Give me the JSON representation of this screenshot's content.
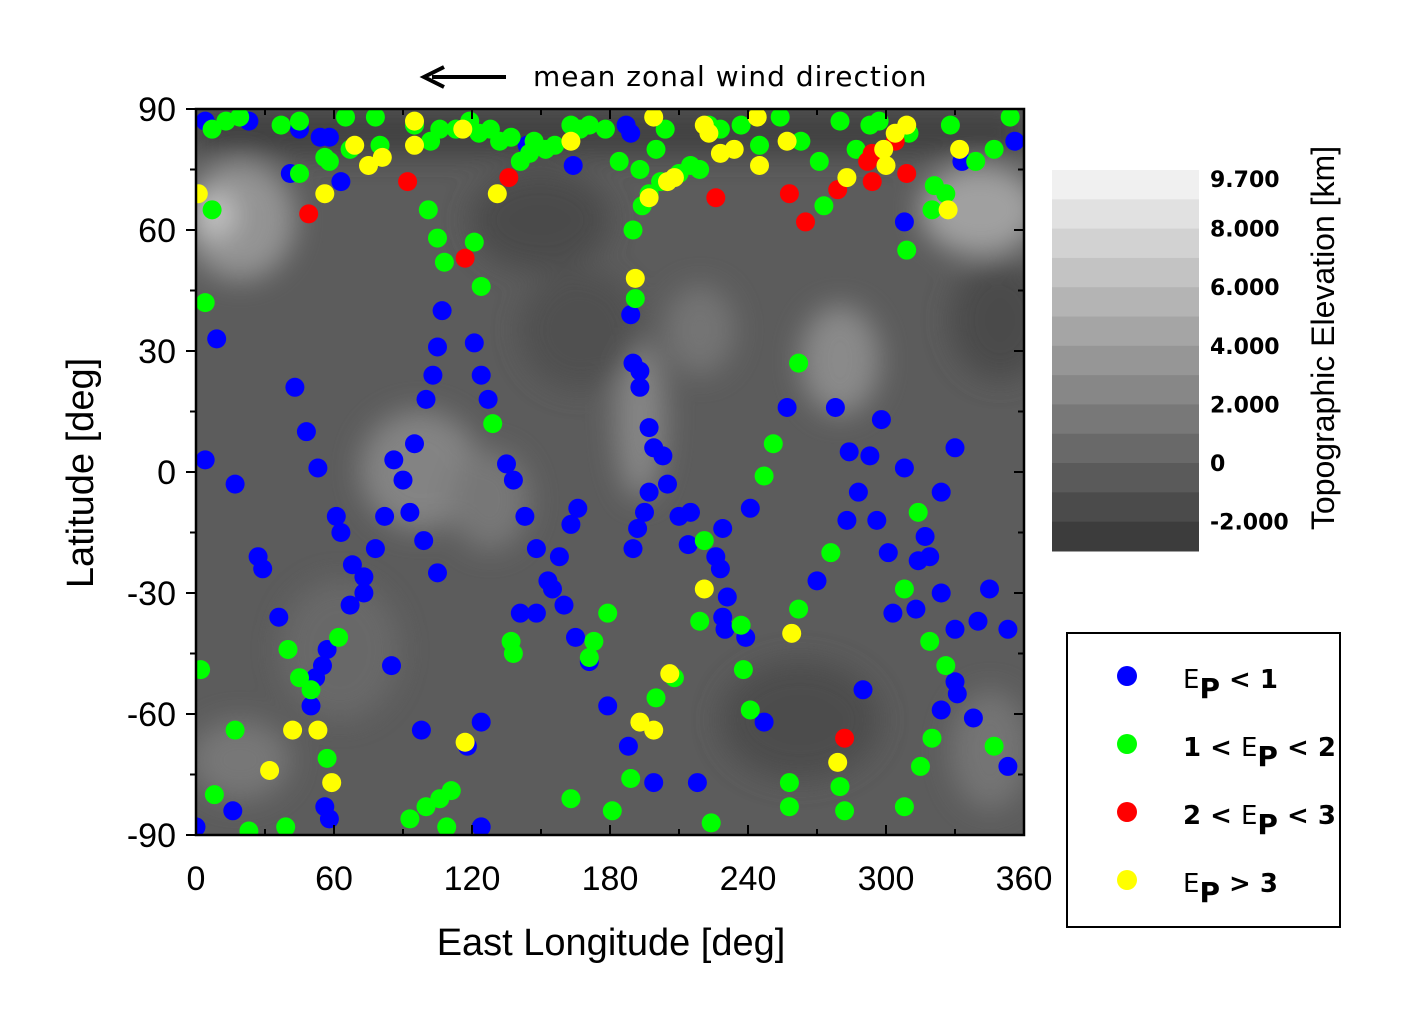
{
  "annotation": {
    "text": "mean zonal wind direction",
    "arrow_icon": "arrow-left"
  },
  "colorbar": {
    "title": "Topographic Elevation [km]",
    "ticks": [
      {
        "value": 9.7,
        "label": "9.700"
      },
      {
        "value": 8,
        "label": "8.000"
      },
      {
        "value": 6,
        "label": "6.000"
      },
      {
        "value": 4,
        "label": "4.000"
      },
      {
        "value": 2,
        "label": "2.000"
      },
      {
        "value": 0,
        "label": "0"
      },
      {
        "value": -2,
        "label": "-2.000"
      }
    ],
    "range": [
      -3,
      10
    ]
  },
  "legend": {
    "placement": "right-bottom",
    "entries": [
      {
        "prefix": "",
        "symbol": "E",
        "sub": "P",
        "suffix": "< 1",
        "color": "#0000ff"
      },
      {
        "prefix": "1 <",
        "symbol": "E",
        "sub": "P",
        "suffix": "< 2",
        "color": "#00ff00"
      },
      {
        "prefix": "2 <",
        "symbol": "E",
        "sub": "P",
        "suffix": "< 3",
        "color": "#ff0000"
      },
      {
        "prefix": "",
        "symbol": "E",
        "sub": "P",
        "suffix": "> 3",
        "color": "#ffff00"
      }
    ]
  },
  "chart_data": {
    "type": "scatter",
    "title": "",
    "xlabel": "East Longitude [deg]",
    "ylabel": "Latitude [deg]",
    "xlim": [
      0,
      360
    ],
    "ylim": [
      -90,
      90
    ],
    "xticks": [
      {
        "v": 0,
        "label": "0"
      },
      {
        "v": 60,
        "label": "60"
      },
      {
        "v": 120,
        "label": "120"
      },
      {
        "v": 180,
        "label": "180"
      },
      {
        "v": 240,
        "label": "240"
      },
      {
        "v": 300,
        "label": "300"
      },
      {
        "v": 360,
        "label": "360"
      }
    ],
    "yticks": [
      {
        "v": 90,
        "label": "90"
      },
      {
        "v": 60,
        "label": "60"
      },
      {
        "v": 30,
        "label": "30"
      },
      {
        "v": 0,
        "label": "0"
      },
      {
        "v": -30,
        "label": "-30"
      },
      {
        "v": -60,
        "label": "-60"
      },
      {
        "v": -90,
        "label": "-90"
      }
    ],
    "grid": false,
    "series": [
      {
        "name": "Ep < 1",
        "color": "#0000ff",
        "points": [
          [
            4,
            87
          ],
          [
            23,
            87
          ],
          [
            45,
            85
          ],
          [
            54,
            83
          ],
          [
            58,
            83
          ],
          [
            41,
            74
          ],
          [
            63,
            72
          ],
          [
            144,
            81
          ],
          [
            164,
            76
          ],
          [
            187,
            86
          ],
          [
            189,
            84
          ],
          [
            308,
            62
          ],
          [
            333,
            77
          ],
          [
            356,
            82
          ],
          [
            9,
            33
          ],
          [
            43,
            21
          ],
          [
            48,
            10
          ],
          [
            53,
            1
          ],
          [
            4,
            3
          ],
          [
            17,
            -3
          ],
          [
            107,
            40
          ],
          [
            105,
            31
          ],
          [
            103,
            24
          ],
          [
            100,
            18
          ],
          [
            121,
            32
          ],
          [
            124,
            24
          ],
          [
            127,
            18
          ],
          [
            95,
            7
          ],
          [
            86,
            3
          ],
          [
            90,
            -2
          ],
          [
            82,
            -11
          ],
          [
            93,
            -10
          ],
          [
            99,
            -17
          ],
          [
            105,
            -25
          ],
          [
            61,
            -11
          ],
          [
            63,
            -15
          ],
          [
            78,
            -19
          ],
          [
            68,
            -23
          ],
          [
            73,
            -26
          ],
          [
            73,
            -30
          ],
          [
            67,
            -33
          ],
          [
            27,
            -21
          ],
          [
            29,
            -24
          ],
          [
            36,
            -36
          ],
          [
            57,
            -44
          ],
          [
            55,
            -48
          ],
          [
            52,
            -51
          ],
          [
            50,
            -58
          ],
          [
            85,
            -48
          ],
          [
            98,
            -64
          ],
          [
            118,
            -68
          ],
          [
            124,
            -62
          ],
          [
            124,
            -88
          ],
          [
            16,
            -84
          ],
          [
            0,
            -88
          ],
          [
            56,
            -83
          ],
          [
            58,
            -86
          ],
          [
            135,
            2
          ],
          [
            138,
            -2
          ],
          [
            143,
            -11
          ],
          [
            148,
            -19
          ],
          [
            158,
            -21
          ],
          [
            153,
            -27
          ],
          [
            155,
            -29
          ],
          [
            141,
            -35
          ],
          [
            148,
            -35
          ],
          [
            160,
            -33
          ],
          [
            165,
            -41
          ],
          [
            171,
            -47
          ],
          [
            179,
            -58
          ],
          [
            189,
            39
          ],
          [
            190,
            27
          ],
          [
            193,
            25
          ],
          [
            193,
            21
          ],
          [
            197,
            11
          ],
          [
            199,
            6
          ],
          [
            203,
            4
          ],
          [
            205,
            -3
          ],
          [
            197,
            -5
          ],
          [
            195,
            -10
          ],
          [
            192,
            -14
          ],
          [
            190,
            -19
          ],
          [
            166,
            -9
          ],
          [
            163,
            -13
          ],
          [
            210,
            -11
          ],
          [
            215,
            -10
          ],
          [
            214,
            -18
          ],
          [
            226,
            -21
          ],
          [
            229,
            -14
          ],
          [
            228,
            -24
          ],
          [
            231,
            -31
          ],
          [
            229,
            -36
          ],
          [
            230,
            -39
          ],
          [
            239,
            -41
          ],
          [
            241,
            -9
          ],
          [
            247,
            -62
          ],
          [
            218,
            -77
          ],
          [
            199,
            -77
          ],
          [
            188,
            -68
          ],
          [
            257,
            16
          ],
          [
            278,
            16
          ],
          [
            284,
            5
          ],
          [
            293,
            4
          ],
          [
            298,
            13
          ],
          [
            288,
            -5
          ],
          [
            283,
            -12
          ],
          [
            296,
            -12
          ],
          [
            270,
            -27
          ],
          [
            301,
            -20
          ],
          [
            308,
            1
          ],
          [
            330,
            6
          ],
          [
            324,
            -5
          ],
          [
            314,
            -22
          ],
          [
            317,
            -16
          ],
          [
            319,
            -21
          ],
          [
            303,
            -35
          ],
          [
            313,
            -34
          ],
          [
            324,
            -30
          ],
          [
            330,
            -39
          ],
          [
            330,
            -52
          ],
          [
            331,
            -55
          ],
          [
            324,
            -59
          ],
          [
            338,
            -61
          ],
          [
            345,
            -29
          ],
          [
            340,
            -37
          ],
          [
            353,
            -39
          ],
          [
            353,
            -73
          ],
          [
            290,
            -54
          ]
        ]
      },
      {
        "name": "1 < Ep < 2",
        "color": "#00ff00",
        "points": [
          [
            7,
            85
          ],
          [
            13,
            87
          ],
          [
            19,
            88
          ],
          [
            37,
            86
          ],
          [
            45,
            87
          ],
          [
            65,
            88
          ],
          [
            78,
            88
          ],
          [
            67,
            80
          ],
          [
            58,
            77
          ],
          [
            80,
            81
          ],
          [
            95,
            86
          ],
          [
            102,
            82
          ],
          [
            106,
            85
          ],
          [
            113,
            85
          ],
          [
            119,
            87
          ],
          [
            123,
            84
          ],
          [
            128,
            85
          ],
          [
            132,
            82
          ],
          [
            137,
            83
          ],
          [
            141,
            77
          ],
          [
            145,
            79
          ],
          [
            147,
            82
          ],
          [
            152,
            80
          ],
          [
            156,
            81
          ],
          [
            163,
            86
          ],
          [
            167,
            85
          ],
          [
            171,
            86
          ],
          [
            178,
            85
          ],
          [
            184,
            77
          ],
          [
            193,
            75
          ],
          [
            202,
            72
          ],
          [
            210,
            74
          ],
          [
            215,
            76
          ],
          [
            219,
            75
          ],
          [
            228,
            85
          ],
          [
            237,
            86
          ],
          [
            245,
            81
          ],
          [
            254,
            88
          ],
          [
            263,
            82
          ],
          [
            271,
            77
          ],
          [
            280,
            87
          ],
          [
            287,
            80
          ],
          [
            293,
            86
          ],
          [
            297,
            87
          ],
          [
            310,
            84
          ],
          [
            321,
            71
          ],
          [
            328,
            86
          ],
          [
            339,
            77
          ],
          [
            347,
            80
          ],
          [
            354,
            88
          ],
          [
            45,
            74
          ],
          [
            56,
            78
          ],
          [
            7,
            65
          ],
          [
            101,
            65
          ],
          [
            105,
            58
          ],
          [
            108,
            52
          ],
          [
            121,
            57
          ],
          [
            124,
            46
          ],
          [
            4,
            42
          ],
          [
            129,
            12
          ],
          [
            191,
            43
          ],
          [
            190,
            60
          ],
          [
            194,
            66
          ],
          [
            197,
            69
          ],
          [
            200,
            80
          ],
          [
            204,
            85
          ],
          [
            223,
            86
          ],
          [
            262,
            27
          ],
          [
            251,
            7
          ],
          [
            247,
            -1
          ],
          [
            309,
            55
          ],
          [
            273,
            66
          ],
          [
            320,
            65
          ],
          [
            326,
            69
          ],
          [
            2,
            -49
          ],
          [
            17,
            -64
          ],
          [
            8,
            -80
          ],
          [
            23,
            -89
          ],
          [
            39,
            -88
          ],
          [
            40,
            -44
          ],
          [
            45,
            -51
          ],
          [
            50,
            -54
          ],
          [
            62,
            -41
          ],
          [
            57,
            -71
          ],
          [
            93,
            -86
          ],
          [
            100,
            -83
          ],
          [
            106,
            -81
          ],
          [
            111,
            -79
          ],
          [
            109,
            -88
          ],
          [
            138,
            -45
          ],
          [
            137,
            -42
          ],
          [
            163,
            -81
          ],
          [
            179,
            -35
          ],
          [
            173,
            -42
          ],
          [
            171,
            -46
          ],
          [
            181,
            -84
          ],
          [
            189,
            -76
          ],
          [
            200,
            -56
          ],
          [
            208,
            -51
          ],
          [
            221,
            -17
          ],
          [
            219,
            -37
          ],
          [
            237,
            -38
          ],
          [
            238,
            -49
          ],
          [
            241,
            -59
          ],
          [
            224,
            -87
          ],
          [
            262,
            -34
          ],
          [
            276,
            -20
          ],
          [
            258,
            -77
          ],
          [
            258,
            -83
          ],
          [
            280,
            -78
          ],
          [
            282,
            -84
          ],
          [
            308,
            -83
          ],
          [
            315,
            -73
          ],
          [
            320,
            -66
          ],
          [
            308,
            -29
          ],
          [
            314,
            -10
          ],
          [
            326,
            -48
          ],
          [
            319,
            -42
          ],
          [
            347,
            -68
          ]
        ]
      },
      {
        "name": "2 < Ep < 3",
        "color": "#ff0000",
        "points": [
          [
            49,
            64
          ],
          [
            92,
            72
          ],
          [
            117,
            53
          ],
          [
            136,
            73
          ],
          [
            226,
            68
          ],
          [
            258,
            69
          ],
          [
            265,
            62
          ],
          [
            279,
            70
          ],
          [
            292,
            77
          ],
          [
            294,
            72
          ],
          [
            309,
            74
          ],
          [
            304,
            82
          ],
          [
            294,
            79
          ],
          [
            282,
            -66
          ]
        ]
      },
      {
        "name": "Ep > 3",
        "color": "#ffff00",
        "points": [
          [
            1,
            69
          ],
          [
            56,
            69
          ],
          [
            69,
            81
          ],
          [
            75,
            76
          ],
          [
            81,
            78
          ],
          [
            95,
            87
          ],
          [
            95,
            81
          ],
          [
            116,
            85
          ],
          [
            131,
            69
          ],
          [
            163,
            82
          ],
          [
            191,
            48
          ],
          [
            197,
            68
          ],
          [
            199,
            88
          ],
          [
            205,
            72
          ],
          [
            208,
            73
          ],
          [
            221,
            86
          ],
          [
            223,
            84
          ],
          [
            228,
            79
          ],
          [
            234,
            80
          ],
          [
            244,
            88
          ],
          [
            245,
            76
          ],
          [
            257,
            82
          ],
          [
            283,
            73
          ],
          [
            299,
            80
          ],
          [
            300,
            76
          ],
          [
            304,
            84
          ],
          [
            309,
            86
          ],
          [
            327,
            65
          ],
          [
            332,
            80
          ],
          [
            221,
            -29
          ],
          [
            259,
            -40
          ],
          [
            42,
            -64
          ],
          [
            53,
            -64
          ],
          [
            32,
            -74
          ],
          [
            59,
            -77
          ],
          [
            117,
            -67
          ],
          [
            206,
            -50
          ],
          [
            193,
            -62
          ],
          [
            199,
            -64
          ],
          [
            279,
            -72
          ]
        ]
      }
    ]
  }
}
